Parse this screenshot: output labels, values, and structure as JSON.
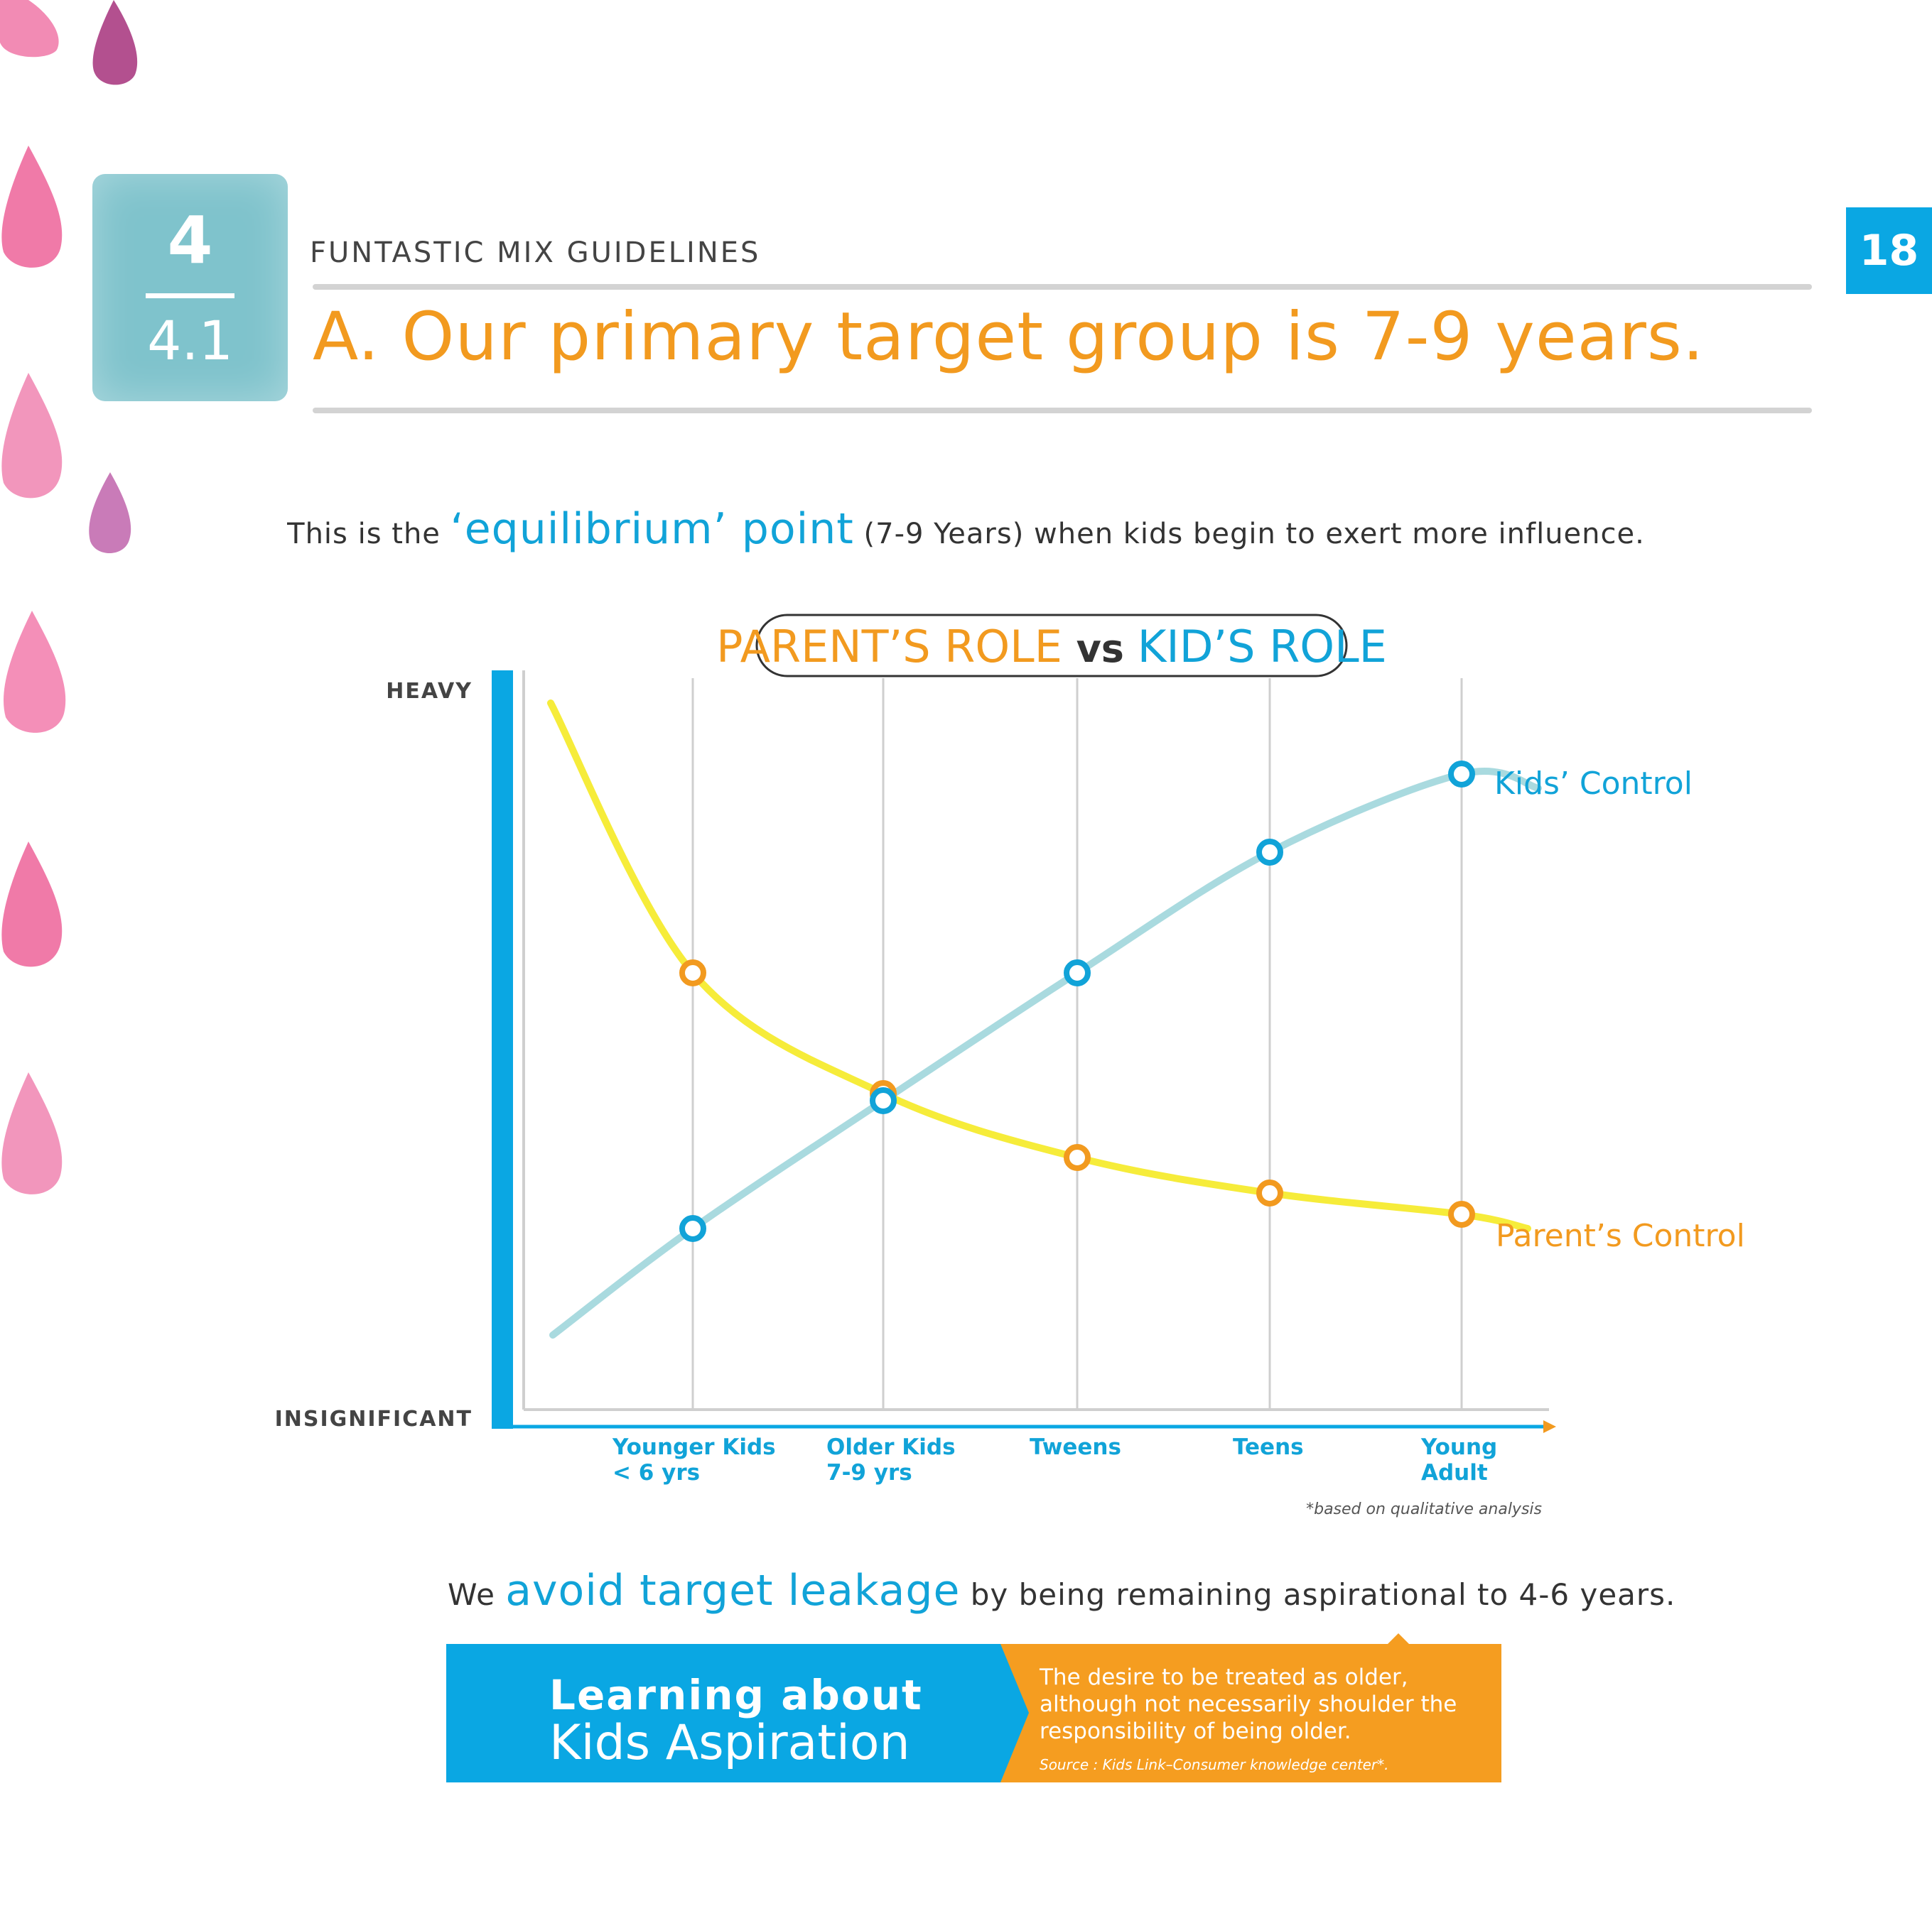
{
  "section": {
    "number": "4",
    "sub": "4.1"
  },
  "header": {
    "kicker": "FUNTASTIC MIX GUIDELINES",
    "headline": "A. Our primary target group is 7-9 years.",
    "page_number": "18"
  },
  "lede": {
    "before": "This is the ",
    "highlight": "‘equilibrium’ point",
    "after": " (7-9 Years) when kids begin to exert more influence."
  },
  "chart_data": {
    "type": "line",
    "title_left": "PARENT’S ROLE",
    "title_vs": "vs",
    "title_right": "KID’S ROLE",
    "y_top_label": "HEAVY",
    "y_bottom_label": "INSIGNIFICANT",
    "categories": [
      [
        "Younger Kids",
        "< 6 yrs"
      ],
      [
        "Older Kids",
        "7-9 yrs"
      ],
      [
        "Tweens"
      ],
      [
        "Teens"
      ],
      [
        "Young",
        "Adult"
      ]
    ],
    "ylim": [
      0,
      100
    ],
    "series": [
      {
        "name": "Kids’ Control",
        "color": "#a9dadf",
        "marker": "#11a3d8",
        "values": [
          27,
          45,
          63,
          80,
          91
        ]
      },
      {
        "name": "Parent’s Control",
        "color": "#f6ec3a",
        "marker": "#f29a1f",
        "values": [
          63,
          46,
          37,
          32,
          29
        ]
      }
    ],
    "note": "*based on qualitative analysis",
    "grid": true
  },
  "footer": {
    "before": "We ",
    "highlight": "avoid target leakage",
    "after": " by being remaining aspirational to 4-6 years."
  },
  "banner": {
    "title_line1": "Learning about",
    "title_line2": "Kids Aspiration",
    "text": "The desire to be treated as older, although not necessarily shoulder the responsibility of being older.",
    "source": "Source : Kids Link–Consumer knowledge center*."
  },
  "colors": {
    "accent_blue": "#0aa7e3",
    "accent_orange": "#f29a1f",
    "drop_pink": "#ef6fa0"
  }
}
